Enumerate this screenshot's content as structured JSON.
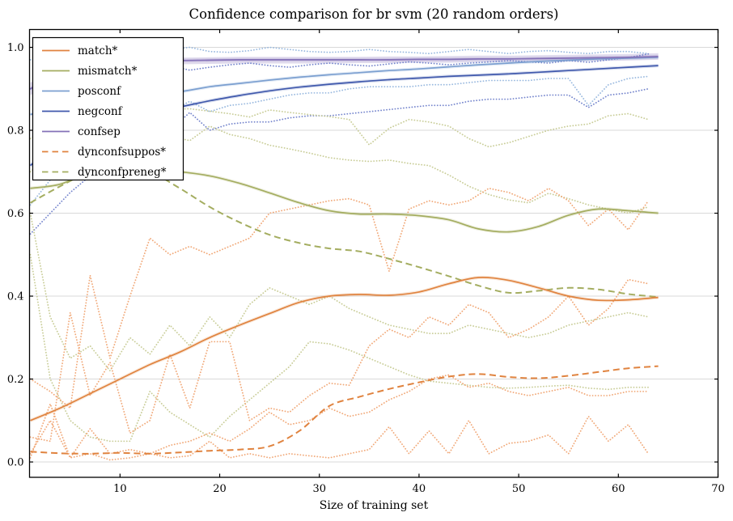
{
  "chart_data": {
    "type": "line",
    "title": "Confidence comparison for br svm (20 random orders)",
    "xlabel": "Size of training set",
    "ylabel": "",
    "xlim": [
      0.92,
      70
    ],
    "ylim": [
      -0.037,
      1.043
    ],
    "grid": "horizontal",
    "legend_position": "upper left",
    "xticks": [
      10,
      20,
      30,
      40,
      50,
      60,
      70
    ],
    "yticks": [
      0.0,
      0.2,
      0.4,
      0.6,
      0.8,
      1.0
    ],
    "palette": {
      "orange": "#e0833f",
      "olive": "#a4ad60",
      "lightblue": "#7b9fd0",
      "blue": "#3f58ac",
      "purple": "#8471b8",
      "orange_dot": "#f0a472",
      "olive_dot": "#c6ca92",
      "lightblue_dot": "#93b5dd",
      "blue_dot": "#6f7fca",
      "gridline": "#d9d9d9"
    },
    "x_grids": {
      "main": [
        1,
        4,
        7,
        10,
        13,
        16,
        19,
        22,
        25,
        28,
        31,
        34,
        37,
        40,
        43,
        46,
        49,
        52,
        55,
        58,
        61,
        64
      ],
      "env": [
        1,
        3,
        5,
        7,
        9,
        11,
        13,
        15,
        17,
        19,
        21,
        23,
        25,
        27,
        29,
        31,
        33,
        35,
        37,
        39,
        41,
        43,
        45,
        47,
        49,
        51,
        53,
        55,
        57,
        59,
        61,
        63
      ]
    },
    "band": {
      "name": "confsep-band",
      "color": "purple",
      "xgrid": "main",
      "upper": [
        0.915,
        0.945,
        0.96,
        0.968,
        0.972,
        0.975,
        0.976,
        0.977,
        0.977,
        0.977,
        0.977,
        0.977,
        0.978,
        0.978,
        0.979,
        0.98,
        0.98,
        0.981,
        0.982,
        0.983,
        0.984,
        0.986
      ],
      "lower": [
        0.885,
        0.922,
        0.94,
        0.95,
        0.956,
        0.959,
        0.96,
        0.961,
        0.961,
        0.961,
        0.961,
        0.962,
        0.962,
        0.963,
        0.963,
        0.964,
        0.964,
        0.965,
        0.966,
        0.967,
        0.968,
        0.97
      ]
    },
    "series": [
      {
        "name": "posconf-upper-env",
        "color": "lightblue_dot",
        "style": "dotted",
        "xgrid": "env",
        "y": [
          0.97,
          0.985,
          0.99,
          1.0,
          0.995,
          1.0,
          0.99,
          0.995,
          1.0,
          0.99,
          0.988,
          0.992,
          1.0,
          0.995,
          0.99,
          0.988,
          0.99,
          0.995,
          0.99,
          0.988,
          0.985,
          0.99,
          0.995,
          0.99,
          0.985,
          0.99,
          0.992,
          0.988,
          0.985,
          0.99,
          0.99,
          0.985
        ]
      },
      {
        "name": "posconf-lower-env",
        "color": "lightblue_dot",
        "style": "dotted",
        "xgrid": "env",
        "y": [
          0.62,
          0.68,
          0.72,
          0.76,
          0.79,
          0.81,
          0.83,
          0.845,
          0.87,
          0.845,
          0.86,
          0.865,
          0.875,
          0.885,
          0.89,
          0.89,
          0.9,
          0.905,
          0.905,
          0.905,
          0.91,
          0.91,
          0.915,
          0.92,
          0.92,
          0.92,
          0.925,
          0.925,
          0.86,
          0.91,
          0.925,
          0.93
        ]
      },
      {
        "name": "negconf-upper-env",
        "color": "blue_dot",
        "style": "dotted",
        "xgrid": "env",
        "y": [
          0.9,
          0.93,
          0.945,
          0.955,
          0.96,
          0.962,
          0.958,
          0.955,
          0.945,
          0.952,
          0.958,
          0.962,
          0.956,
          0.952,
          0.958,
          0.962,
          0.958,
          0.955,
          0.96,
          0.965,
          0.962,
          0.958,
          0.962,
          0.965,
          0.968,
          0.965,
          0.962,
          0.968,
          0.964,
          0.97,
          0.975,
          0.984
        ]
      },
      {
        "name": "negconf-lower-env",
        "color": "blue_dot",
        "style": "dotted",
        "xgrid": "env",
        "y": [
          0.55,
          0.6,
          0.65,
          0.69,
          0.72,
          0.745,
          0.77,
          0.8,
          0.843,
          0.8,
          0.815,
          0.82,
          0.82,
          0.83,
          0.835,
          0.835,
          0.84,
          0.845,
          0.85,
          0.855,
          0.86,
          0.86,
          0.87,
          0.875,
          0.875,
          0.88,
          0.885,
          0.885,
          0.855,
          0.885,
          0.89,
          0.9
        ]
      },
      {
        "name": "mismatch-upper-env",
        "color": "olive_dot",
        "style": "dotted",
        "xgrid": "env",
        "y": [
          0.78,
          0.81,
          0.84,
          0.87,
          0.88,
          0.87,
          0.86,
          0.85,
          0.852,
          0.846,
          0.84,
          0.832,
          0.849,
          0.843,
          0.838,
          0.833,
          0.826,
          0.765,
          0.805,
          0.826,
          0.82,
          0.81,
          0.78,
          0.76,
          0.77,
          0.785,
          0.8,
          0.81,
          0.815,
          0.835,
          0.84,
          0.826
        ]
      },
      {
        "name": "mismatch-lower-env",
        "color": "olive_dot",
        "style": "dotted",
        "xgrid": "env",
        "y": [
          0.6,
          0.35,
          0.25,
          0.28,
          0.22,
          0.3,
          0.26,
          0.33,
          0.28,
          0.35,
          0.3,
          0.38,
          0.42,
          0.4,
          0.38,
          0.4,
          0.37,
          0.35,
          0.33,
          0.32,
          0.31,
          0.31,
          0.33,
          0.32,
          0.31,
          0.3,
          0.31,
          0.33,
          0.34,
          0.35,
          0.36,
          0.35
        ]
      },
      {
        "name": "dynconfpreneg-upper-env",
        "color": "olive_dot",
        "style": "dotted",
        "xgrid": "env",
        "y": [
          0.7,
          0.74,
          0.77,
          0.79,
          0.8,
          0.795,
          0.79,
          0.785,
          0.775,
          0.81,
          0.79,
          0.78,
          0.764,
          0.755,
          0.745,
          0.734,
          0.728,
          0.725,
          0.728,
          0.72,
          0.715,
          0.692,
          0.665,
          0.645,
          0.632,
          0.625,
          0.648,
          0.635,
          0.62,
          0.61,
          0.6,
          0.615
        ]
      },
      {
        "name": "dynconfpreneg-lower-env",
        "color": "olive_dot",
        "style": "dotted",
        "xgrid": "env",
        "y": [
          0.5,
          0.2,
          0.1,
          0.06,
          0.05,
          0.05,
          0.17,
          0.12,
          0.09,
          0.06,
          0.11,
          0.15,
          0.19,
          0.23,
          0.29,
          0.285,
          0.27,
          0.25,
          0.23,
          0.21,
          0.195,
          0.19,
          0.185,
          0.18,
          0.178,
          0.18,
          0.183,
          0.185,
          0.178,
          0.175,
          0.18,
          0.18
        ]
      },
      {
        "name": "match-upper-env",
        "color": "orange_dot",
        "style": "dotted",
        "xgrid": "env",
        "y": [
          0.2,
          0.17,
          0.13,
          0.45,
          0.25,
          0.4,
          0.54,
          0.5,
          0.52,
          0.5,
          0.52,
          0.54,
          0.6,
          0.61,
          0.62,
          0.63,
          0.635,
          0.62,
          0.46,
          0.61,
          0.63,
          0.62,
          0.63,
          0.66,
          0.65,
          0.63,
          0.66,
          0.63,
          0.57,
          0.61,
          0.56,
          0.63
        ]
      },
      {
        "name": "match-lower-env",
        "color": "orange_dot",
        "style": "dotted",
        "xgrid": "env",
        "y": [
          0.02,
          0.1,
          0.01,
          0.08,
          0.02,
          0.03,
          0.02,
          0.04,
          0.05,
          0.07,
          0.05,
          0.08,
          0.12,
          0.09,
          0.1,
          0.13,
          0.11,
          0.12,
          0.15,
          0.17,
          0.2,
          0.21,
          0.18,
          0.19,
          0.17,
          0.16,
          0.17,
          0.18,
          0.16,
          0.16,
          0.17,
          0.17
        ]
      },
      {
        "name": "dynconfsuppos-upper-env",
        "color": "orange_dot",
        "style": "dotted",
        "xgrid": "env",
        "y": [
          0.06,
          0.05,
          0.36,
          0.16,
          0.24,
          0.07,
          0.1,
          0.26,
          0.13,
          0.29,
          0.29,
          0.1,
          0.13,
          0.12,
          0.16,
          0.19,
          0.185,
          0.28,
          0.32,
          0.3,
          0.35,
          0.33,
          0.38,
          0.36,
          0.3,
          0.32,
          0.35,
          0.4,
          0.33,
          0.37,
          0.44,
          0.43
        ]
      },
      {
        "name": "dynconfsuppos-lower-env",
        "color": "orange_dot",
        "style": "dotted",
        "xgrid": "env",
        "y": [
          0.01,
          0.14,
          0.01,
          0.02,
          0.005,
          0.01,
          0.02,
          0.01,
          0.015,
          0.05,
          0.01,
          0.02,
          0.01,
          0.02,
          0.015,
          0.01,
          0.02,
          0.03,
          0.085,
          0.02,
          0.075,
          0.02,
          0.1,
          0.02,
          0.045,
          0.05,
          0.065,
          0.02,
          0.11,
          0.05,
          0.09,
          0.02
        ]
      },
      {
        "name": "dynconfsuppos",
        "color": "orange",
        "style": "dashed",
        "xgrid": "main",
        "smooth": true,
        "y": [
          0.025,
          0.021,
          0.02,
          0.022,
          0.02,
          0.023,
          0.027,
          0.03,
          0.038,
          0.075,
          0.135,
          0.157,
          0.176,
          0.192,
          0.206,
          0.212,
          0.205,
          0.202,
          0.208,
          0.217,
          0.226,
          0.231
        ]
      },
      {
        "name": "dynconfpreneg",
        "color": "olive",
        "style": "dashed",
        "xgrid": "main",
        "smooth": true,
        "y": [
          0.625,
          0.665,
          0.7,
          0.715,
          0.7,
          0.66,
          0.615,
          0.578,
          0.548,
          0.528,
          0.515,
          0.508,
          0.49,
          0.47,
          0.448,
          0.425,
          0.408,
          0.413,
          0.42,
          0.416,
          0.405,
          0.398
        ]
      },
      {
        "name": "match",
        "color": "orange",
        "style": "solid",
        "xgrid": "main",
        "smooth": true,
        "halo": true,
        "y": [
          0.1,
          0.13,
          0.165,
          0.2,
          0.235,
          0.265,
          0.3,
          0.33,
          0.358,
          0.385,
          0.4,
          0.404,
          0.402,
          0.41,
          0.43,
          0.445,
          0.438,
          0.42,
          0.4,
          0.39,
          0.391,
          0.397
        ]
      },
      {
        "name": "mismatch",
        "color": "olive",
        "style": "solid",
        "xgrid": "main",
        "smooth": true,
        "halo": true,
        "y": [
          0.66,
          0.67,
          0.7,
          0.71,
          0.705,
          0.7,
          0.69,
          0.672,
          0.649,
          0.625,
          0.606,
          0.598,
          0.598,
          0.594,
          0.584,
          0.562,
          0.555,
          0.568,
          0.595,
          0.61,
          0.606,
          0.6
        ]
      },
      {
        "name": "posconf",
        "color": "lightblue",
        "style": "solid",
        "xgrid": "main",
        "smooth": true,
        "halo": true,
        "y": [
          0.838,
          0.858,
          0.872,
          0.882,
          0.888,
          0.893,
          0.905,
          0.913,
          0.921,
          0.928,
          0.934,
          0.939,
          0.944,
          0.948,
          0.953,
          0.958,
          0.962,
          0.966,
          0.969,
          0.972,
          0.974,
          0.976
        ]
      },
      {
        "name": "negconf",
        "color": "blue",
        "style": "solid",
        "xgrid": "main",
        "smooth": true,
        "halo": true,
        "y": [
          0.715,
          0.77,
          0.8,
          0.822,
          0.84,
          0.856,
          0.871,
          0.884,
          0.895,
          0.904,
          0.911,
          0.917,
          0.922,
          0.926,
          0.93,
          0.933,
          0.936,
          0.94,
          0.944,
          0.948,
          0.952,
          0.956
        ]
      },
      {
        "name": "confsep",
        "color": "purple",
        "style": "solid",
        "xgrid": "main",
        "smooth": true,
        "halo": true,
        "y": [
          0.9,
          0.934,
          0.951,
          0.96,
          0.965,
          0.968,
          0.969,
          0.97,
          0.97,
          0.97,
          0.97,
          0.97,
          0.97,
          0.971,
          0.971,
          0.972,
          0.972,
          0.973,
          0.974,
          0.975,
          0.976,
          0.978
        ]
      }
    ],
    "legend": {
      "entries": [
        {
          "label": "match*",
          "color": "orange",
          "style": "solid"
        },
        {
          "label": "mismatch*",
          "color": "olive",
          "style": "solid"
        },
        {
          "label": "posconf",
          "color": "lightblue",
          "style": "solid"
        },
        {
          "label": "negconf",
          "color": "blue",
          "style": "solid"
        },
        {
          "label": "confsep",
          "color": "purple",
          "style": "solid"
        },
        {
          "label": "dynconfsuppos*",
          "color": "orange",
          "style": "dashed"
        },
        {
          "label": "dynconfpreneg*",
          "color": "olive",
          "style": "dashed"
        }
      ]
    }
  }
}
